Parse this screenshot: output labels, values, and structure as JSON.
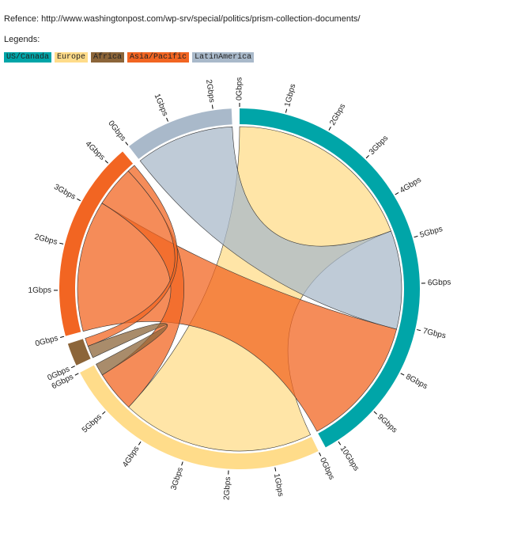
{
  "reference": "Refence: http://www.washingtonpost.com/wp-srv/special/politics/prism-collection-documents/",
  "legend_title": "Legends:",
  "chart_data": {
    "type": "chord",
    "groups": [
      {
        "name": "US/Canada",
        "color": "#00a5a8",
        "ticks": [
          {
            "value": 0,
            "label": "0Gbps"
          },
          {
            "value": 1,
            "label": "1Gbps"
          },
          {
            "value": 2,
            "label": "2Gbps"
          },
          {
            "value": 3,
            "label": "3Gbps"
          },
          {
            "value": 4,
            "label": "4Gbps"
          },
          {
            "value": 5,
            "label": "5Gbps"
          },
          {
            "value": 6,
            "label": "6Gbps"
          },
          {
            "value": 7,
            "label": "7Gbps"
          },
          {
            "value": 8,
            "label": "8Gbps"
          },
          {
            "value": 9,
            "label": "9Gbps"
          },
          {
            "value": 10,
            "label": "10Gbps"
          }
        ]
      },
      {
        "name": "Europe",
        "color": "#ffdc8a",
        "ticks": [
          {
            "value": 0,
            "label": "0Gbps"
          },
          {
            "value": 1,
            "label": "1Gbps"
          },
          {
            "value": 2,
            "label": "2Gbps"
          },
          {
            "value": 3,
            "label": "3Gbps"
          },
          {
            "value": 4,
            "label": "4Gbps"
          },
          {
            "value": 5,
            "label": "5Gbps"
          },
          {
            "value": 6,
            "label": "6Gbps"
          }
        ]
      },
      {
        "name": "Africa",
        "color": "#8c6539",
        "ticks": [
          {
            "value": 0,
            "label": "0Gbps"
          }
        ]
      },
      {
        "name": "Asia/Pacific",
        "color": "#f26522",
        "ticks": [
          {
            "value": 0,
            "label": "0Gbps"
          },
          {
            "value": 1,
            "label": "1Gbps"
          },
          {
            "value": 2,
            "label": "2Gbps"
          },
          {
            "value": 3,
            "label": "3Gbps"
          },
          {
            "value": 4,
            "label": "4Gbps"
          }
        ]
      },
      {
        "name": "LatinAmerica",
        "color": "#a9b9ca",
        "ticks": [
          {
            "value": 0,
            "label": "0Gbps"
          },
          {
            "value": 1,
            "label": "1Gbps"
          },
          {
            "value": 2,
            "label": "2Gbps"
          }
        ]
      }
    ],
    "flows": [
      {
        "source": 0,
        "target": 1,
        "value": 4.7
      },
      {
        "source": 0,
        "target": 4,
        "value": 2.4
      },
      {
        "source": 0,
        "target": 3,
        "value": 3.2
      },
      {
        "source": 1,
        "target": 3,
        "value": 1.0
      },
      {
        "source": 1,
        "target": 2,
        "value": 0.3
      },
      {
        "source": 2,
        "target": 3,
        "value": 0.2
      }
    ]
  }
}
